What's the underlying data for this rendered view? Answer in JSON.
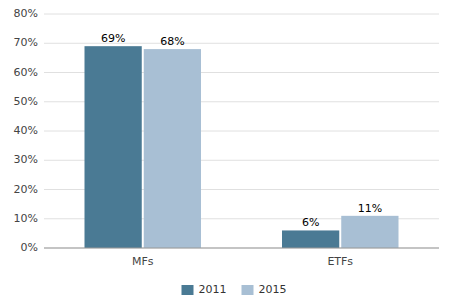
{
  "chart_data": {
    "type": "bar",
    "categories": [
      "MFs",
      "ETFs"
    ],
    "series": [
      {
        "name": "2011",
        "color": "#4a7a94",
        "values": [
          0.69,
          0.06
        ],
        "value_labels": [
          "69%",
          "6%"
        ]
      },
      {
        "name": "2015",
        "color": "#a8bfd4",
        "values": [
          0.68,
          0.11
        ],
        "value_labels": [
          "68%",
          "11%"
        ]
      }
    ],
    "ylim": [
      0,
      0.8
    ],
    "yticks": [
      {
        "value": 0,
        "label": "0%"
      },
      {
        "value": 0.1,
        "label": "10%"
      },
      {
        "value": 0.2,
        "label": "20%"
      },
      {
        "value": 0.3,
        "label": "30%"
      },
      {
        "value": 0.4,
        "label": "40%"
      },
      {
        "value": 0.5,
        "label": "50%"
      },
      {
        "value": 0.6,
        "label": "60%"
      },
      {
        "value": 0.7,
        "label": "70%"
      },
      {
        "value": 0.8,
        "label": "80%"
      }
    ],
    "grid": true,
    "legend": "bottom",
    "data_labels": true
  }
}
